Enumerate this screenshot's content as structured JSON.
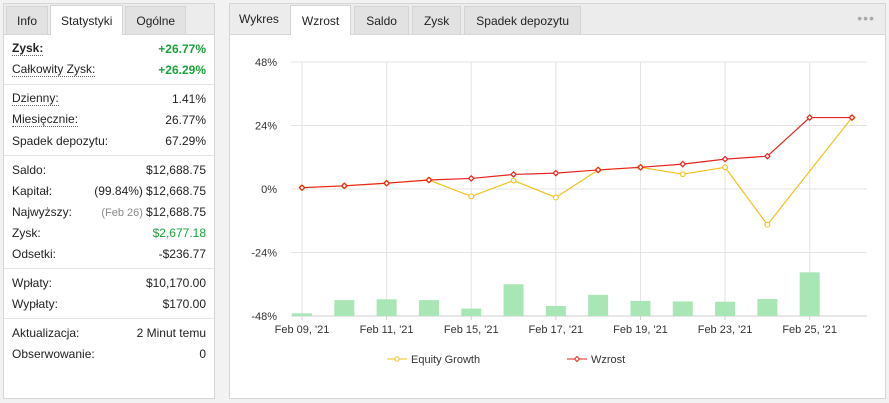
{
  "left": {
    "tabs": [
      "Info",
      "Statystyki",
      "Ogólne"
    ],
    "active_tab": "Statystyki",
    "zysk_label": "Zysk:",
    "zysk_value": "+26.77%",
    "calk_label": "Całkowity Zysk:",
    "calk_value": "+26.29%",
    "dzienny_label": "Dzienny:",
    "dzienny_value": "1.41%",
    "miesiecznie_label": "Miesięcznie:",
    "miesiecznie_value": "26.77%",
    "spadek_label": "Spadek depozytu:",
    "spadek_value": "67.29%",
    "saldo_label": "Saldo:",
    "saldo_value": "$12,688.75",
    "kapital_label": "Kapitał:",
    "kapital_sub": "(99.84%)",
    "kapital_value": "$12,668.75",
    "najwyzszy_label": "Najwyższy:",
    "najwyzszy_sub": "(Feb 26)",
    "najwyzszy_value": "$12,688.75",
    "zysk2_label": "Zysk:",
    "zysk2_value": "$2,677.18",
    "odsetki_label": "Odsetki:",
    "odsetki_value": "-$236.77",
    "wplaty_label": "Wpłaty:",
    "wplaty_value": "$10,170.00",
    "wyplaty_label": "Wypłaty:",
    "wyplaty_value": "$170.00",
    "aktualizacja_label": "Aktualizacja:",
    "aktualizacja_value": "2 Minut temu",
    "obserwowanie_label": "Obserwowanie:",
    "obserwowanie_value": "0"
  },
  "right": {
    "title": "Wykres",
    "tabs": [
      "Wzrost",
      "Saldo",
      "Zysk",
      "Spadek depozytu"
    ],
    "active_tab": "Wzrost",
    "menu_glyph": "•••"
  },
  "colors": {
    "wzrost": "#e8231f",
    "equity": "#f2c21b",
    "bars": "#a8e6b5",
    "grid": "#e3e3e3",
    "profit_green": "#1aa33a"
  },
  "chart_data": {
    "type": "line",
    "x_tick_labels": [
      "Feb 09, '21",
      "Feb 11, '21",
      "Feb 15, '21",
      "Feb 17, '21",
      "Feb 19, '21",
      "Feb 23, '21",
      "Feb 25, '21"
    ],
    "y_tick_labels": [
      "48%",
      "24%",
      "0%",
      "-24%",
      "-48%"
    ],
    "ylim": [
      -48,
      48
    ],
    "grid": true,
    "legend": [
      "Equity Growth",
      "Wzrost"
    ],
    "legend_position": "bottom",
    "points_count": 14,
    "series": [
      {
        "name": "Wzrost",
        "values": [
          0.5,
          1.2,
          2.2,
          3.4,
          4.0,
          5.5,
          6.0,
          7.2,
          8.2,
          9.4,
          11.3,
          12.4,
          27.0,
          27.0
        ]
      },
      {
        "name": "Equity Growth",
        "values": [
          0.5,
          1.2,
          2.2,
          3.4,
          -2.8,
          3.2,
          -3.2,
          7.2,
          8.2,
          5.6,
          8.2,
          -13.5,
          null,
          27.0
        ]
      },
      {
        "name": "Daily bars",
        "values": [
          -47.0,
          -42.0,
          -41.7,
          -42.0,
          -45.2,
          -36.0,
          -44.2,
          -40.0,
          -42.3,
          -42.5,
          -42.6,
          -41.6,
          -31.5,
          null
        ]
      }
    ]
  }
}
